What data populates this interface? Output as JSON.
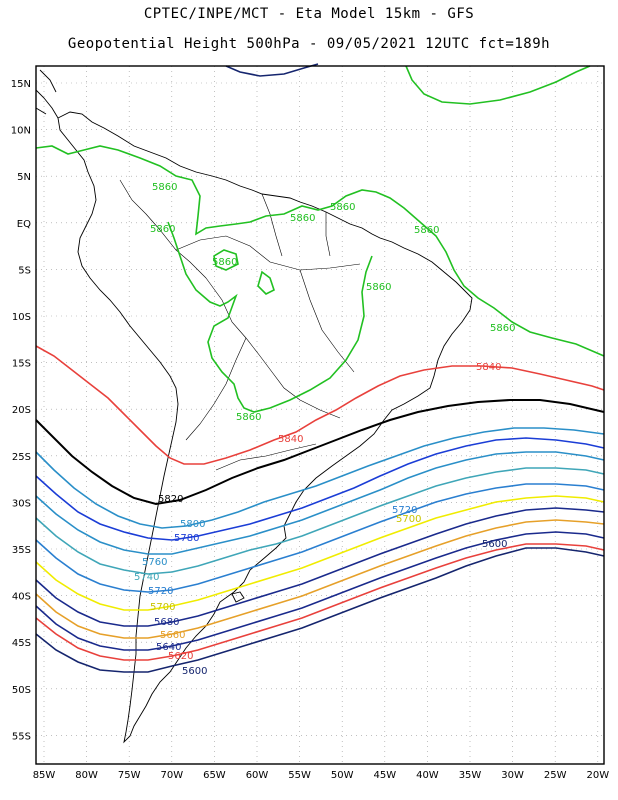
{
  "titles": {
    "line1": "CPTEC/INPE/MCT -  Eta Model 15km - GFS",
    "line2": "Geopotential Height 500hPa - 09/05/2021 12UTC fct=189h"
  },
  "axes": {
    "lon_ticks": [
      "85W",
      "80W",
      "75W",
      "70W",
      "65W",
      "60W",
      "55W",
      "50W",
      "45W",
      "40W",
      "35W",
      "30W",
      "25W",
      "20W"
    ],
    "lat_ticks": [
      "15N",
      "10N",
      "5N",
      "EQ",
      "5S",
      "10S",
      "15S",
      "20S",
      "25S",
      "30S",
      "35S",
      "40S",
      "45S",
      "50S",
      "55S"
    ]
  },
  "contours": [
    {
      "level": 5860,
      "color": "#22c022",
      "labels": [
        "5860",
        "5860",
        "5860",
        "5860",
        "5860",
        "5860",
        "5860",
        "5860",
        "5860"
      ]
    },
    {
      "level": 5840,
      "color": "#e8413c",
      "labels": [
        "5840",
        "5840"
      ]
    },
    {
      "level": 5820,
      "color": "#000000",
      "labels": [
        "5820"
      ]
    },
    {
      "level": 5800,
      "color": "#2a8fc8",
      "labels": [
        "5800"
      ]
    },
    {
      "level": 5780,
      "color": "#1b3dd6",
      "labels": [
        "5780"
      ]
    },
    {
      "level": 5760,
      "color": "#2a8fc8",
      "labels": [
        "5760"
      ]
    },
    {
      "level": 5740,
      "color": "#3fa6b8",
      "labels": [
        "5740"
      ]
    },
    {
      "level": 5720,
      "color": "#2a7fd0",
      "labels": [
        "5720",
        "5720"
      ]
    },
    {
      "level": 5700,
      "color": "#f0ec00",
      "labels": [
        "5700",
        "5700"
      ]
    },
    {
      "level": 5680,
      "color": "#1a2a8c",
      "labels": [
        "5680"
      ]
    },
    {
      "level": 5660,
      "color": "#e6a029",
      "labels": [
        "5660"
      ]
    },
    {
      "level": 5640,
      "color": "#1a2a8c",
      "labels": [
        "5640"
      ]
    },
    {
      "level": 5620,
      "color": "#e8413c",
      "labels": [
        "5620"
      ]
    },
    {
      "level": 5600,
      "color": "#15256e",
      "labels": [
        "5600",
        "5600"
      ]
    }
  ],
  "colors": {
    "grid": "#9a9a9a",
    "coast": "#000000",
    "frame": "#000000"
  }
}
